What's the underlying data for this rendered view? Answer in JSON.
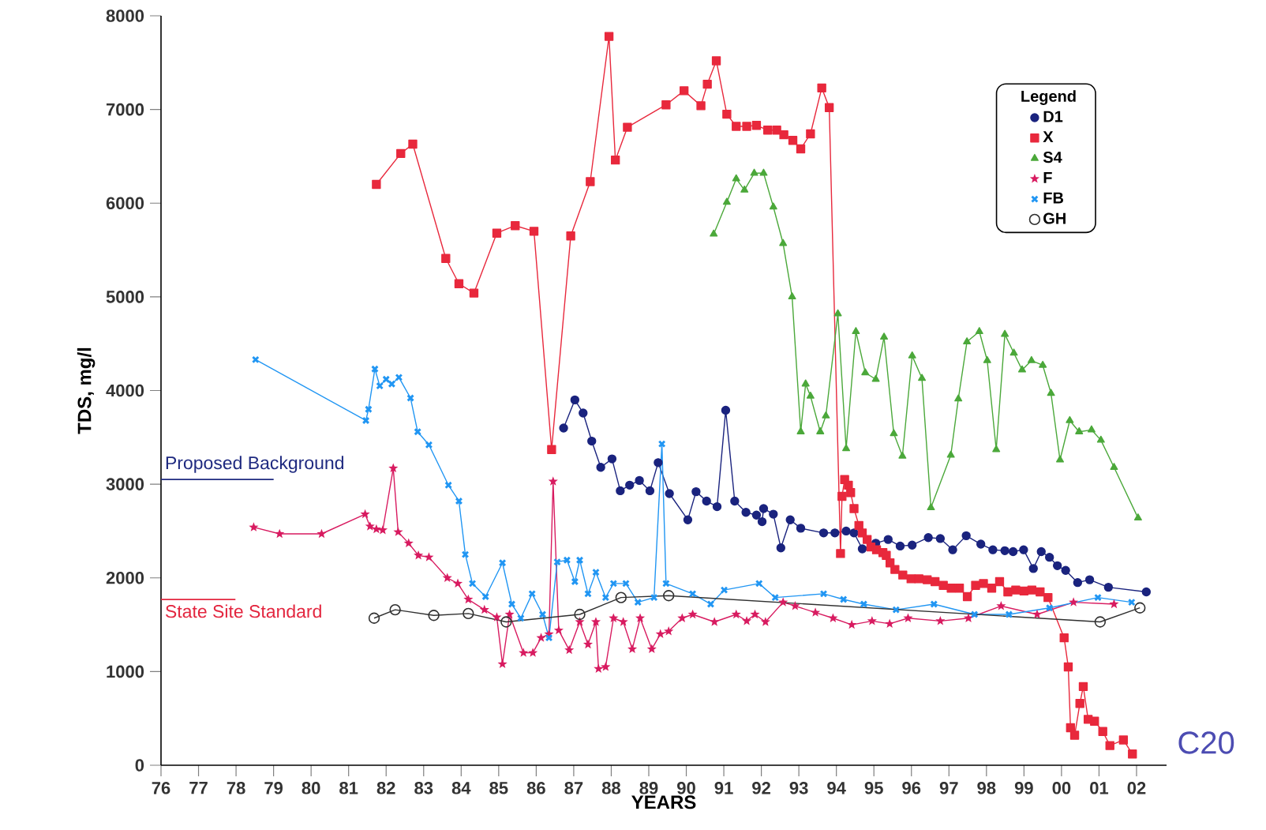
{
  "chart_data": {
    "type": "line",
    "xlabel": "YEARS",
    "ylabel": "TDS, mg/l",
    "legend_title": "Legend",
    "legend": "top right",
    "grid": false,
    "xlim": [
      1976,
      2002.8
    ],
    "ylim": [
      0,
      8000
    ],
    "yticks": [
      0,
      1000,
      2000,
      3000,
      4000,
      5000,
      6000,
      7000,
      8000
    ],
    "xticks": [
      {
        "value": 1976,
        "label": "76"
      },
      {
        "value": 1977,
        "label": "77"
      },
      {
        "value": 1978,
        "label": "78"
      },
      {
        "value": 1979,
        "label": "79"
      },
      {
        "value": 1980,
        "label": "80"
      },
      {
        "value": 1981,
        "label": "81"
      },
      {
        "value": 1982,
        "label": "82"
      },
      {
        "value": 1983,
        "label": "83"
      },
      {
        "value": 1984,
        "label": "84"
      },
      {
        "value": 1985,
        "label": "85"
      },
      {
        "value": 1986,
        "label": "86"
      },
      {
        "value": 1987,
        "label": "87"
      },
      {
        "value": 1988,
        "label": "88"
      },
      {
        "value": 1989,
        "label": "89"
      },
      {
        "value": 1990,
        "label": "90"
      },
      {
        "value": 1991,
        "label": "91"
      },
      {
        "value": 1992,
        "label": "92"
      },
      {
        "value": 1993,
        "label": "93"
      },
      {
        "value": 1994,
        "label": "94"
      },
      {
        "value": 1995,
        "label": "95"
      },
      {
        "value": 1996,
        "label": "96"
      },
      {
        "value": 1997,
        "label": "97"
      },
      {
        "value": 1998,
        "label": "98"
      },
      {
        "value": 1999,
        "label": "99"
      },
      {
        "value": 2000,
        "label": "00"
      },
      {
        "value": 2001,
        "label": "01"
      },
      {
        "value": 2002,
        "label": "02"
      }
    ],
    "ref_lines": [
      {
        "axis": "y",
        "value": 3050,
        "label": "Proposed Background",
        "color": "#1f2a80"
      },
      {
        "axis": "y",
        "value": 1770,
        "label": "State Site Standard",
        "color": "#e3263f"
      }
    ],
    "annotations": [
      "C20"
    ],
    "series": [
      {
        "name": "D1",
        "color": "#1a237e",
        "marker": "circle",
        "x": [
          1986.73,
          1987.03,
          1987.25,
          1987.48,
          1987.72,
          1988.02,
          1988.24,
          1988.49,
          1988.75,
          1989.03,
          1989.25,
          1989.55,
          1990.04,
          1990.26,
          1990.54,
          1990.82,
          1991.05,
          1991.29,
          1991.59,
          1991.87,
          1992.02,
          1992.06,
          1992.32,
          1992.52,
          1992.77,
          1993.05,
          1993.66,
          1993.96,
          1994.26,
          1994.47,
          1994.69,
          1995.05,
          1995.38,
          1995.7,
          1996.02,
          1996.45,
          1996.77,
          1997.1,
          1997.46,
          1997.85,
          1998.17,
          1998.49,
          1998.71,
          1998.99,
          1999.25,
          1999.46,
          1999.68,
          1999.89,
          2000.11,
          2000.43,
          2000.75,
          2001.25,
          2002.26
        ],
        "values": [
          3600,
          3900,
          3760,
          3460,
          3180,
          3270,
          2930,
          2990,
          3040,
          2930,
          3230,
          2900,
          2620,
          2920,
          2820,
          2760,
          3790,
          2820,
          2700,
          2670,
          2600,
          2740,
          2680,
          2320,
          2620,
          2530,
          2480,
          2480,
          2500,
          2480,
          2310,
          2370,
          2410,
          2340,
          2350,
          2430,
          2420,
          2300,
          2450,
          2360,
          2300,
          2290,
          2280,
          2300,
          2100,
          2280,
          2220,
          2130,
          2080,
          1950,
          1980,
          1900,
          1850
        ]
      },
      {
        "name": "X",
        "color": "#e8283c",
        "marker": "square",
        "x": [
          1981.74,
          1982.39,
          1982.71,
          1983.59,
          1983.94,
          1984.34,
          1984.95,
          1985.44,
          1985.94,
          1986.41,
          1986.92,
          1987.44,
          1987.94,
          1988.11,
          1988.43,
          1989.46,
          1989.94,
          1990.39,
          1990.56,
          1990.8,
          1991.08,
          1991.33,
          1991.61,
          1991.87,
          1992.17,
          1992.41,
          1992.6,
          1992.84,
          1993.05,
          1993.31,
          1993.61,
          1993.81,
          1994.11,
          1994.15,
          1994.22,
          1994.32,
          1994.38,
          1994.47,
          1994.6,
          1994.69,
          1994.82,
          1994.92,
          1995.07,
          1995.24,
          1995.33,
          1995.43,
          1995.56,
          1995.77,
          1995.99,
          1996.2,
          1996.42,
          1996.63,
          1996.85,
          1997.06,
          1997.28,
          1997.49,
          1997.71,
          1997.92,
          1998.14,
          1998.35,
          1998.57,
          1998.78,
          1999.0,
          1999.21,
          1999.43,
          1999.64,
          2000.07,
          2000.18,
          2000.24,
          2000.35,
          2000.49,
          2000.58,
          2000.71,
          2000.88,
          2001.1,
          2001.29,
          2001.65,
          2001.89
        ],
        "values": [
          6200,
          6530,
          6630,
          5410,
          5140,
          5040,
          5680,
          5760,
          5700,
          3370,
          5650,
          6230,
          7780,
          6460,
          6810,
          7050,
          7200,
          7040,
          7270,
          7520,
          6950,
          6820,
          6820,
          6830,
          6780,
          6780,
          6730,
          6670,
          6580,
          6740,
          7230,
          7020,
          2260,
          2870,
          3050,
          2990,
          2910,
          2740,
          2560,
          2480,
          2410,
          2330,
          2300,
          2270,
          2240,
          2160,
          2090,
          2030,
          1990,
          1990,
          1980,
          1960,
          1920,
          1890,
          1890,
          1800,
          1920,
          1940,
          1890,
          1960,
          1850,
          1870,
          1860,
          1870,
          1850,
          1790,
          1360,
          1050,
          400,
          320,
          660,
          840,
          490,
          470,
          360,
          210,
          270,
          120
        ]
      },
      {
        "name": "S4",
        "color": "#4ba83a",
        "marker": "triangle",
        "x": [
          1990.73,
          1991.08,
          1991.33,
          1991.55,
          1991.81,
          1992.06,
          1992.32,
          1992.58,
          1992.82,
          1993.05,
          1993.18,
          1993.31,
          1993.57,
          1993.72,
          1994.04,
          1994.26,
          1994.52,
          1994.77,
          1995.05,
          1995.27,
          1995.53,
          1995.76,
          1996.02,
          1996.28,
          1996.52,
          1997.05,
          1997.25,
          1997.48,
          1997.81,
          1998.02,
          1998.26,
          1998.49,
          1998.73,
          1998.95,
          1999.2,
          1999.5,
          1999.72,
          1999.96,
          2000.22,
          2000.47,
          2000.8,
          2001.05,
          2001.4,
          2002.04
        ],
        "values": [
          5670,
          6010,
          6260,
          6140,
          6320,
          6320,
          5960,
          5570,
          5000,
          3560,
          4070,
          3940,
          3560,
          3730,
          4820,
          3380,
          4630,
          4190,
          4120,
          4570,
          3540,
          3300,
          4370,
          4130,
          2750,
          3310,
          3910,
          4520,
          4630,
          4320,
          3370,
          4600,
          4400,
          4220,
          4320,
          4270,
          3970,
          3260,
          3680,
          3560,
          3580,
          3470,
          3180,
          2640
        ]
      },
      {
        "name": "F",
        "color": "#d81b60",
        "marker": "star",
        "x": [
          1978.47,
          1979.16,
          1980.28,
          1981.44,
          1981.57,
          1981.74,
          1981.91,
          1982.19,
          1982.32,
          1982.6,
          1982.86,
          1983.14,
          1983.63,
          1983.91,
          1984.19,
          1984.62,
          1984.95,
          1985.1,
          1985.29,
          1985.66,
          1985.91,
          1986.13,
          1986.34,
          1986.45,
          1986.6,
          1986.88,
          1987.16,
          1987.38,
          1987.59,
          1987.66,
          1987.85,
          1988.06,
          1988.32,
          1988.56,
          1988.77,
          1989.08,
          1989.31,
          1989.53,
          1989.89,
          1990.17,
          1990.75,
          1991.33,
          1991.61,
          1991.83,
          1992.11,
          1992.58,
          1992.9,
          1993.44,
          1993.91,
          1994.41,
          1994.95,
          1995.42,
          1995.91,
          1996.77,
          1997.52,
          1998.39,
          1999.35,
          2000.32,
          2001.4
        ],
        "values": [
          2540,
          2470,
          2470,
          2680,
          2550,
          2520,
          2510,
          3170,
          2490,
          2370,
          2240,
          2220,
          2000,
          1940,
          1770,
          1660,
          1580,
          1080,
          1610,
          1200,
          1200,
          1360,
          1400,
          3030,
          1440,
          1230,
          1530,
          1290,
          1530,
          1030,
          1050,
          1570,
          1530,
          1240,
          1570,
          1240,
          1400,
          1430,
          1570,
          1610,
          1530,
          1610,
          1540,
          1610,
          1530,
          1740,
          1700,
          1630,
          1570,
          1500,
          1540,
          1510,
          1570,
          1540,
          1570,
          1700,
          1610,
          1740,
          1720
        ]
      },
      {
        "name": "FB",
        "color": "#2196f3",
        "marker": "cross",
        "x": [
          1978.52,
          1981.46,
          1981.53,
          1981.7,
          1981.83,
          1982.0,
          1982.15,
          1982.34,
          1982.65,
          1982.84,
          1983.14,
          1983.66,
          1983.94,
          1984.11,
          1984.3,
          1984.65,
          1985.1,
          1985.35,
          1985.59,
          1985.89,
          1986.17,
          1986.34,
          1986.56,
          1986.82,
          1987.03,
          1987.16,
          1987.38,
          1987.59,
          1987.85,
          1988.06,
          1988.39,
          1988.71,
          1989.14,
          1989.35,
          1989.46,
          1990.17,
          1990.65,
          1991.01,
          1991.94,
          1992.37,
          1993.66,
          1994.19,
          1994.73,
          1995.59,
          1996.6,
          1997.68,
          1998.6,
          1999.68,
          2000.97,
          2001.87
        ],
        "values": [
          4330,
          3680,
          3800,
          4230,
          4050,
          4120,
          4070,
          4140,
          3920,
          3560,
          3420,
          2990,
          2820,
          2250,
          1940,
          1800,
          2160,
          1720,
          1570,
          1830,
          1610,
          1360,
          2170,
          2190,
          1960,
          2190,
          1830,
          2060,
          1790,
          1940,
          1940,
          1740,
          1790,
          3430,
          1940,
          1830,
          1720,
          1870,
          1940,
          1790,
          1830,
          1770,
          1720,
          1660,
          1720,
          1610,
          1610,
          1680,
          1790,
          1740
        ]
      },
      {
        "name": "GH",
        "color": "#303030",
        "marker": "open circle",
        "x": [
          1981.68,
          1982.24,
          1983.27,
          1984.19,
          1985.2,
          1987.16,
          1988.26,
          1989.53,
          2001.03,
          2002.09
        ],
        "values": [
          1570,
          1660,
          1600,
          1620,
          1530,
          1610,
          1790,
          1810,
          1530,
          1680
        ]
      }
    ]
  }
}
